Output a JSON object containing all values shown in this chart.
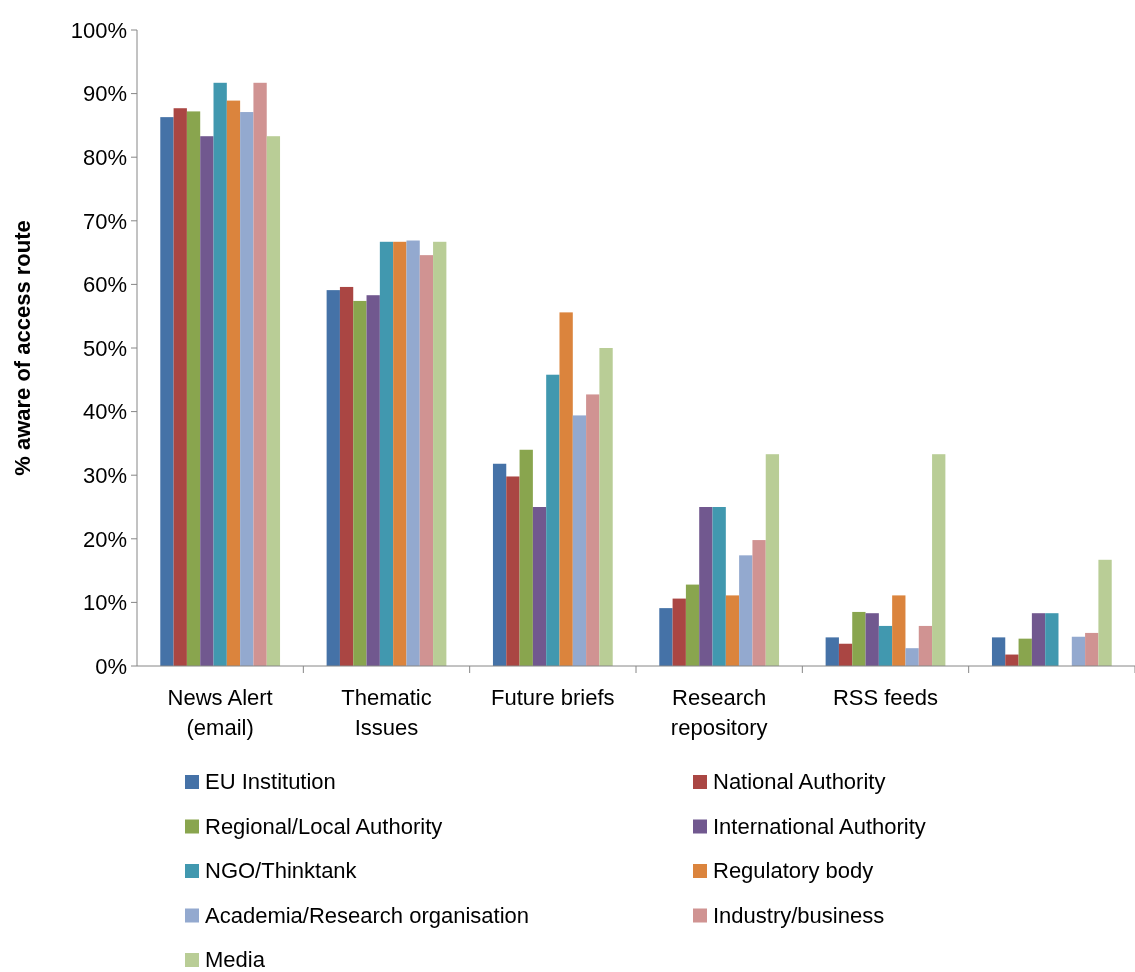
{
  "chart_data": {
    "type": "bar",
    "ylabel": "% aware of access route",
    "categories": [
      "News Alert (email)",
      "Thematic Issues",
      "Future briefs",
      "Research repository",
      "RSS feeds",
      null
    ],
    "ylim": [
      0,
      100
    ],
    "yticks": [
      {
        "value": 0,
        "label": "0%"
      },
      {
        "value": 10,
        "label": "10%"
      },
      {
        "value": 20,
        "label": "20%"
      },
      {
        "value": 30,
        "label": "30%"
      },
      {
        "value": 40,
        "label": "40%"
      },
      {
        "value": 50,
        "label": "50%"
      },
      {
        "value": 60,
        "label": "60%"
      },
      {
        "value": 70,
        "label": "70%"
      },
      {
        "value": 80,
        "label": "80%"
      },
      {
        "value": 90,
        "label": "90%"
      },
      {
        "value": 100,
        "label": "100%"
      }
    ],
    "grid": false,
    "legend": "bottom",
    "series": [
      {
        "name": "EU Institution",
        "color": "#4572a7",
        "values": [
          86.3,
          59.1,
          31.8,
          9.1,
          4.5,
          4.5
        ]
      },
      {
        "name": "National Authority",
        "color": "#aa4643",
        "values": [
          87.7,
          59.6,
          29.8,
          10.6,
          3.5,
          1.8
        ]
      },
      {
        "name": "Regional/Local Authority",
        "color": "#89a54e",
        "values": [
          87.2,
          57.4,
          34.0,
          12.8,
          8.5,
          4.3
        ]
      },
      {
        "name": "International Authority",
        "color": "#71588f",
        "values": [
          83.3,
          58.3,
          25.0,
          25.0,
          8.3,
          8.3
        ]
      },
      {
        "name": "NGO/Thinktank",
        "color": "#4198af",
        "values": [
          91.7,
          66.7,
          45.8,
          25.0,
          6.3,
          8.3
        ]
      },
      {
        "name": "Regulatory body",
        "color": "#db843d",
        "values": [
          88.9,
          66.7,
          55.6,
          11.1,
          11.1,
          0
        ]
      },
      {
        "name": "Academia/Research organisation",
        "color": "#93a9cf",
        "values": [
          87.1,
          66.9,
          39.4,
          17.4,
          2.8,
          4.6
        ]
      },
      {
        "name": "Industry/business",
        "color": "#d09392",
        "values": [
          91.7,
          64.6,
          42.7,
          19.8,
          6.3,
          5.2
        ]
      },
      {
        "name": "Media",
        "color": "#b9cd96",
        "values": [
          83.3,
          66.7,
          50.0,
          33.3,
          33.3,
          16.7
        ]
      }
    ]
  }
}
